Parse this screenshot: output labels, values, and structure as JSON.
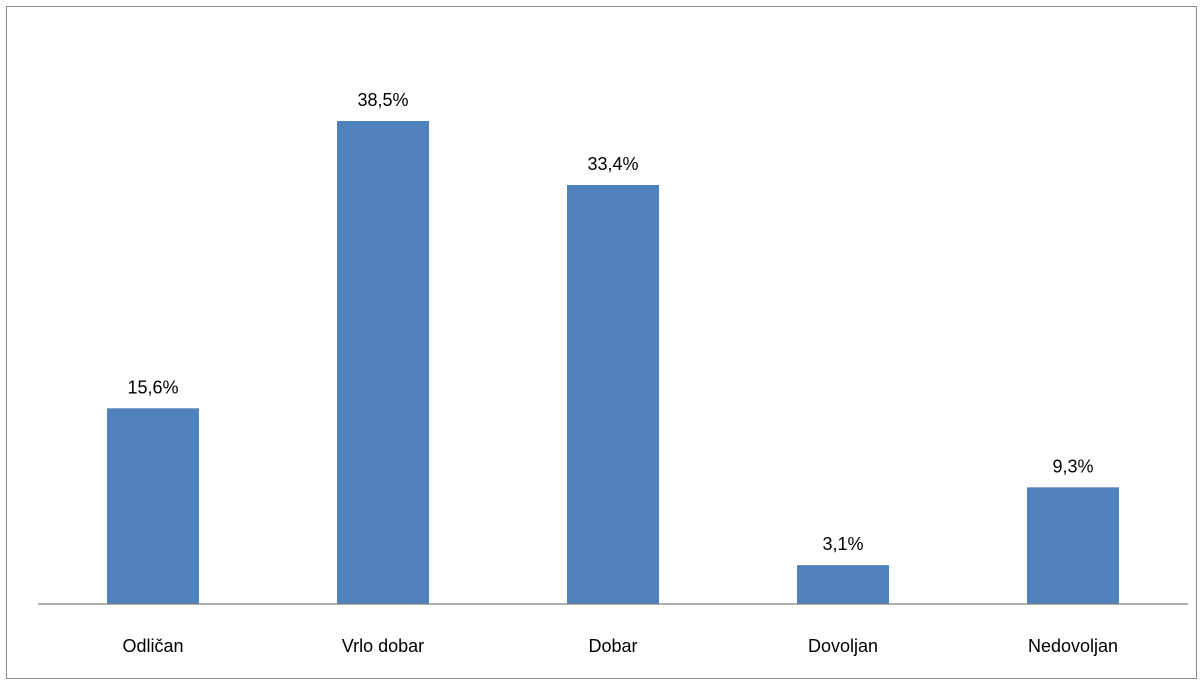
{
  "chart_data": {
    "type": "bar",
    "title": "",
    "xlabel": "",
    "ylabel": "",
    "categories": [
      "Odličan",
      "Vrlo dobar",
      "Dobar",
      "Dovoljan",
      "Nedovoljan"
    ],
    "values": [
      15.6,
      38.5,
      33.4,
      3.1,
      9.3
    ],
    "data_labels": [
      "15,6%",
      "38,5%",
      "33,4%",
      "3,1%",
      "9,3%"
    ],
    "ylim": [
      0,
      38.5
    ],
    "grid": false,
    "legend": "none",
    "bar_color": "#4f81bd",
    "axis_color": "#7f7f7f"
  }
}
